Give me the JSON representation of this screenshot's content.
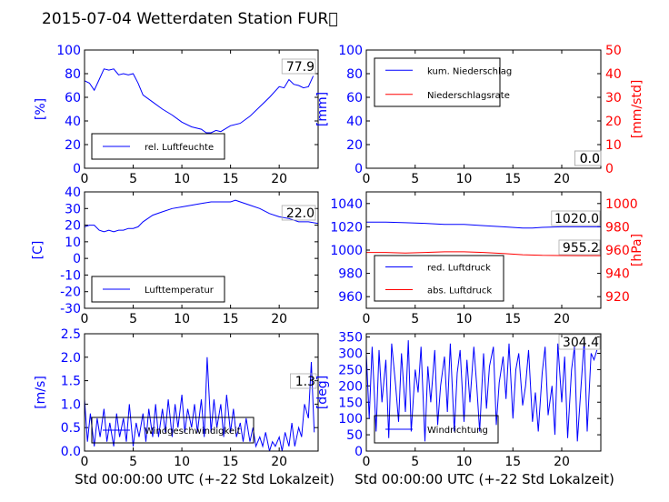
{
  "figure": {
    "title": "2015-07-04 Wetterdaten Station FUR\u0000",
    "xlabel": "Std 00:00:00 UTC (+-22 Std Lokalzeit)"
  },
  "colors": {
    "primary": "#0000ff",
    "secondary": "#ff0000",
    "axis": "#000000"
  },
  "chart_data": [
    {
      "id": "humidity",
      "type": "line",
      "ylabel": "[%]",
      "xlim": [
        0,
        24
      ],
      "ylim": [
        0,
        100
      ],
      "xticks": [
        0,
        5,
        10,
        15,
        20
      ],
      "yticks": [
        0,
        20,
        40,
        60,
        80,
        100
      ],
      "legend": "bottom-left",
      "current_value": "77.9",
      "series": [
        {
          "name": "rel. Luftfeuchte",
          "color": "#0000ff",
          "x": [
            0,
            0.5,
            1,
            1.5,
            2,
            2.5,
            3,
            3.5,
            4,
            4.5,
            5,
            5.5,
            6,
            7,
            8,
            9,
            10,
            11,
            12,
            12.5,
            13,
            13.5,
            14,
            15,
            16,
            17,
            18,
            19,
            20,
            20.5,
            21,
            21.5,
            22,
            22.5,
            23,
            23.5
          ],
          "y": [
            74,
            72,
            66,
            75,
            84,
            83,
            84,
            79,
            80,
            79,
            80,
            72,
            62,
            56,
            50,
            45,
            39,
            35,
            33,
            30,
            30,
            32,
            31,
            36,
            38,
            44,
            52,
            60,
            69,
            68,
            75,
            71,
            70,
            68,
            69,
            78
          ]
        }
      ]
    },
    {
      "id": "rain",
      "type": "line",
      "ylabel": "[mm]",
      "ylabel2": "[mm/std]",
      "xlim": [
        0,
        24
      ],
      "ylim": [
        0,
        100
      ],
      "ylim2": [
        0,
        50
      ],
      "xticks": [
        0,
        5,
        10,
        15,
        20
      ],
      "yticks": [
        0,
        20,
        40,
        60,
        80,
        100
      ],
      "yticks2": [
        0,
        10,
        20,
        30,
        40,
        50
      ],
      "legend": "top-left",
      "current_value": "0.0",
      "current_value2": "0.0",
      "series": [
        {
          "name": "kum. Niederschlag",
          "color": "#0000ff",
          "axis": "left",
          "x": [
            0,
            24
          ],
          "y": [
            0,
            0
          ]
        },
        {
          "name": "Niederschlagsrate",
          "color": "#ff0000",
          "axis": "right",
          "x": [
            0,
            24
          ],
          "y": [
            0,
            0
          ]
        }
      ]
    },
    {
      "id": "temperature",
      "type": "line",
      "ylabel": "[C]",
      "xlim": [
        0,
        24
      ],
      "ylim": [
        -30,
        40
      ],
      "xticks": [
        0,
        5,
        10,
        15,
        20
      ],
      "yticks": [
        -30,
        -20,
        -10,
        0,
        10,
        20,
        30,
        40
      ],
      "legend": "bottom-left",
      "current_value": "22.0",
      "series": [
        {
          "name": "Lufttemperatur",
          "color": "#0000ff",
          "x": [
            0,
            0.5,
            1,
            1.5,
            2,
            2.5,
            3,
            3.5,
            4,
            4.5,
            5,
            5.5,
            6,
            7,
            8,
            9,
            10,
            11,
            12,
            13,
            14,
            15,
            15.5,
            16,
            17,
            18,
            19,
            20,
            21,
            22,
            23,
            24
          ],
          "y": [
            19,
            20,
            20,
            17,
            16,
            17,
            16,
            17,
            17,
            18,
            18,
            19,
            22,
            26,
            28,
            30,
            31,
            32,
            33,
            34,
            34,
            34,
            35,
            34,
            32,
            30,
            27,
            25,
            24,
            22,
            22,
            21
          ]
        }
      ]
    },
    {
      "id": "pressure",
      "type": "line",
      "ylabel2": "[hPa]",
      "xlim": [
        0,
        24
      ],
      "ylim": [
        950,
        1050
      ],
      "ylim2": [
        910,
        1010
      ],
      "xticks": [
        0,
        5,
        10,
        15,
        20
      ],
      "yticks": [
        960,
        980,
        1000,
        1020,
        1040
      ],
      "yticks2": [
        920,
        940,
        960,
        980,
        1000
      ],
      "legend": "bottom-left",
      "current_value": "1020.0",
      "current_value2": "955.2",
      "series": [
        {
          "name": "red. Luftdruck",
          "color": "#0000ff",
          "axis": "left",
          "x": [
            0,
            2,
            4,
            6,
            8,
            10,
            12,
            14,
            16,
            17,
            18,
            20,
            22,
            24
          ],
          "y": [
            1024,
            1024,
            1023.5,
            1023,
            1022,
            1022,
            1021,
            1020,
            1019,
            1019,
            1019.5,
            1020,
            1020,
            1020
          ]
        },
        {
          "name": "abs. Luftdruck",
          "color": "#ff0000",
          "axis": "right",
          "x": [
            0,
            2,
            4,
            6,
            8,
            10,
            12,
            14,
            16,
            18,
            20,
            22,
            24
          ],
          "y": [
            958,
            958,
            957.5,
            958,
            958.5,
            958.5,
            958,
            957,
            956,
            955.5,
            955.3,
            955.2,
            955.2
          ]
        }
      ]
    },
    {
      "id": "wind",
      "type": "line",
      "ylabel": "[m/s]",
      "xlim": [
        0,
        24
      ],
      "ylim": [
        0,
        2.5
      ],
      "xticks": [
        0,
        5,
        10,
        15,
        20
      ],
      "yticks": [
        0.0,
        0.5,
        1.0,
        1.5,
        2.0,
        2.5
      ],
      "legend": "bottom-left",
      "current_value": "1.3",
      "series": [
        {
          "name": "Windgeschwindigkeit",
          "color": "#0000ff",
          "x": [
            0,
            0.3,
            0.6,
            1,
            1.3,
            1.6,
            2,
            2.3,
            2.6,
            3,
            3.3,
            3.6,
            4,
            4.3,
            4.6,
            5,
            5.3,
            5.6,
            6,
            6.3,
            6.6,
            7,
            7.3,
            7.6,
            8,
            8.3,
            8.6,
            9,
            9.3,
            9.6,
            10,
            10.3,
            10.6,
            11,
            11.3,
            11.6,
            12,
            12.3,
            12.6,
            13,
            13.3,
            13.6,
            14,
            14.3,
            14.6,
            15,
            15.3,
            15.6,
            16,
            16.3,
            16.6,
            17,
            17.3,
            17.6,
            18,
            18.3,
            18.6,
            19,
            19.3,
            19.6,
            20,
            20.3,
            20.6,
            21,
            21.3,
            21.6,
            22,
            22.3,
            22.6,
            23,
            23.3,
            23.6
          ],
          "y": [
            1.1,
            0.2,
            0.8,
            0.1,
            0.7,
            0.3,
            0.9,
            0.2,
            0.6,
            0.1,
            0.8,
            0.3,
            0.7,
            0.2,
            1.0,
            0.1,
            0.6,
            0.3,
            0.8,
            0.2,
            0.9,
            0.3,
            1.0,
            0.3,
            0.9,
            0.4,
            1.1,
            0.3,
            1.0,
            0.5,
            1.2,
            0.4,
            0.9,
            0.5,
            1.0,
            0.4,
            1.1,
            0.3,
            2.0,
            0.4,
            1.1,
            0.5,
            1.0,
            0.3,
            1.2,
            0.4,
            0.9,
            0.3,
            0.6,
            0.2,
            0.7,
            0.2,
            0.5,
            0.1,
            0.3,
            0.1,
            0.4,
            0.0,
            0.2,
            0.1,
            0.3,
            0.0,
            0.4,
            0.1,
            0.6,
            0.1,
            0.5,
            0.3,
            1.0,
            0.7,
            1.9,
            0.4
          ]
        }
      ]
    },
    {
      "id": "direction",
      "type": "line",
      "ylabel": "[deg]",
      "xlim": [
        0,
        24
      ],
      "ylim": [
        0,
        360
      ],
      "xticks": [
        0,
        5,
        10,
        15,
        20
      ],
      "yticks": [
        0,
        50,
        100,
        150,
        200,
        250,
        300,
        350
      ],
      "legend": "bottom-left",
      "current_value": "304.4",
      "series": [
        {
          "name": "Windrichtung",
          "color": "#0000ff",
          "x": [
            0,
            0.3,
            0.6,
            1,
            1.3,
            1.6,
            2,
            2.3,
            2.6,
            3,
            3.3,
            3.6,
            4,
            4.3,
            4.6,
            5,
            5.3,
            5.6,
            6,
            6.3,
            6.6,
            7,
            7.3,
            7.6,
            8,
            8.3,
            8.6,
            9,
            9.3,
            9.6,
            10,
            10.3,
            10.6,
            11,
            11.3,
            11.6,
            12,
            12.3,
            12.6,
            13,
            13.3,
            13.6,
            14,
            14.3,
            14.6,
            15,
            15.3,
            15.6,
            16,
            16.3,
            16.6,
            17,
            17.3,
            17.6,
            18,
            18.3,
            18.6,
            19,
            19.3,
            19.6,
            20,
            20.3,
            20.6,
            21,
            21.3,
            21.6,
            22,
            22.3,
            22.6,
            23,
            23.3,
            23.6
          ],
          "y": [
            300,
            100,
            320,
            60,
            310,
            150,
            280,
            40,
            330,
            200,
            90,
            300,
            120,
            340,
            60,
            250,
            180,
            320,
            30,
            260,
            150,
            310,
            80,
            200,
            290,
            120,
            330,
            60,
            240,
            310,
            90,
            280,
            150,
            320,
            200,
            60,
            300,
            130,
            260,
            320,
            80,
            210,
            290,
            160,
            330,
            100,
            250,
            300,
            140,
            200,
            310,
            90,
            180,
            60,
            240,
            320,
            110,
            200,
            50,
            330,
            150,
            290,
            40,
            250,
            320,
            30,
            210,
            340,
            60,
            300,
            280,
            310
          ]
        }
      ]
    }
  ]
}
